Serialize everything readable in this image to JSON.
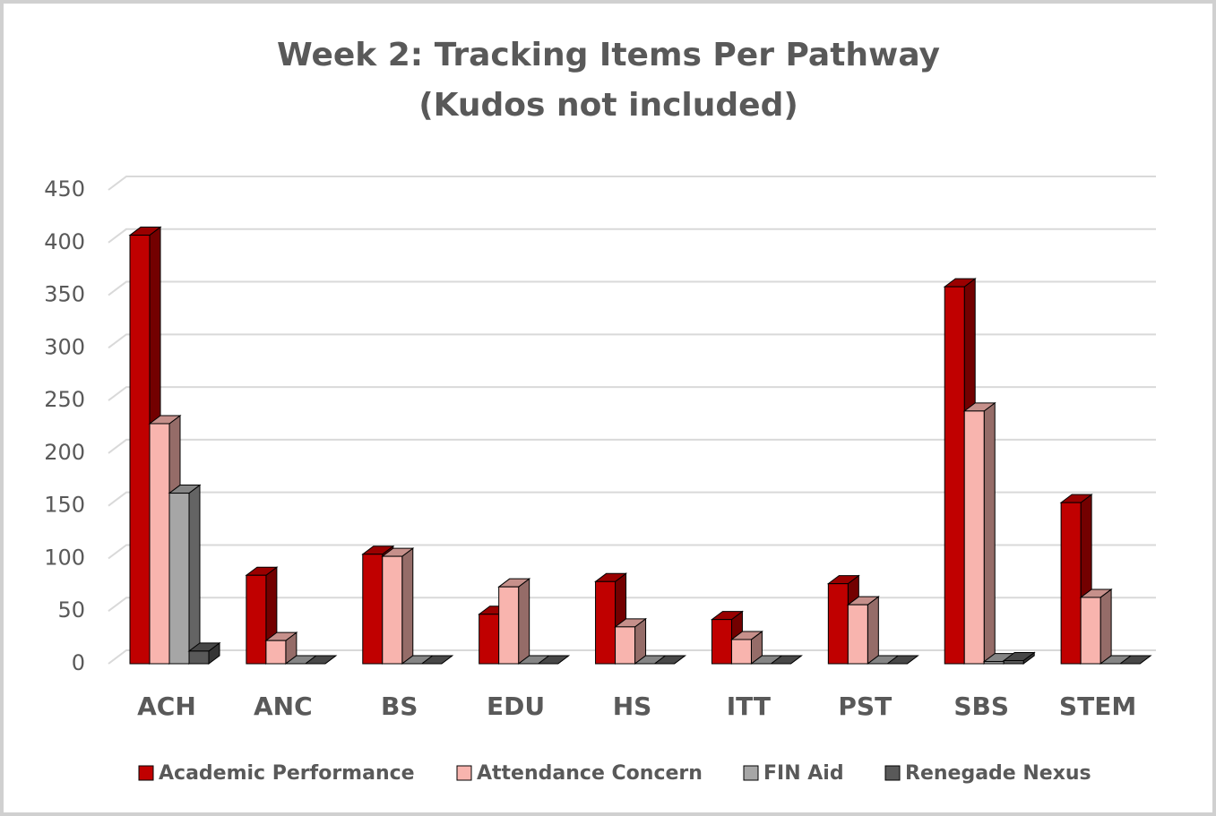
{
  "chart_data": {
    "type": "bar3d",
    "title": "Week 2: Tracking Items Per Pathway",
    "subtitle": "(Kudos not included)",
    "categories": [
      "ACH",
      "ANC",
      "BS",
      "EDU",
      "HS",
      "ITT",
      "PST",
      "SBS",
      "STEM"
    ],
    "series": [
      {
        "name": "Academic Performance",
        "color": "#c00000",
        "values": [
          407,
          84,
          104,
          47,
          78,
          42,
          76,
          358,
          153
        ]
      },
      {
        "name": "Attendance Concern",
        "color": "#f8b4ae",
        "values": [
          228,
          22,
          102,
          73,
          35,
          23,
          56,
          240,
          63
        ]
      },
      {
        "name": "FIN Aid",
        "color": "#a6a6a6",
        "values": [
          162,
          0,
          0,
          0,
          0,
          0,
          0,
          2,
          0
        ]
      },
      {
        "name": "Renegade Nexus",
        "color": "#595959",
        "values": [
          12,
          0,
          0,
          0,
          0,
          0,
          0,
          3,
          0
        ]
      }
    ],
    "ylim": [
      0,
      450
    ],
    "yticks": [
      0,
      50,
      100,
      150,
      200,
      250,
      300,
      350,
      400,
      450
    ],
    "grid": true,
    "legend": "bottom"
  }
}
